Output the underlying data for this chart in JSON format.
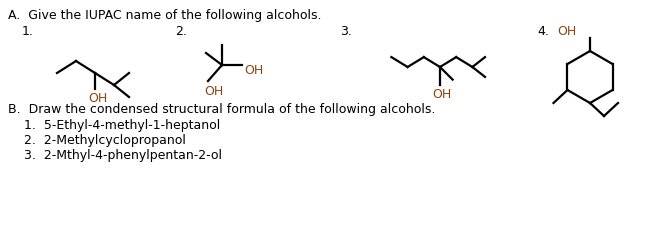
{
  "title_A": "A.  Give the IUPAC name of the following alcohols.",
  "title_B": "B.  Draw the condensed structural formula of the following alcohols.",
  "list_B": [
    "1.  5-Ethyl-4-methyl-1-heptanol",
    "2.  2-Methylcyclopropanol",
    "3.  2-Mthyl-4-phenylpentan-2-ol"
  ],
  "background": "#ffffff",
  "text_color": "#000000",
  "oh_color": "#8B4513",
  "font_size": 9.0,
  "line_color": "#000000",
  "lw": 1.6
}
